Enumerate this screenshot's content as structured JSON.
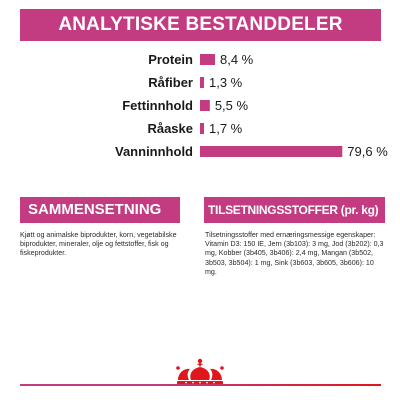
{
  "header": {
    "title": "ANALYTISKE BESTANDDELER"
  },
  "chart_data": {
    "type": "bar",
    "orientation": "horizontal",
    "categories": [
      "Protein",
      "Råfiber",
      "Fettinnhold",
      "Råaske",
      "Vanninnhold"
    ],
    "values": [
      8.4,
      1.3,
      5.5,
      1.7,
      79.6
    ],
    "value_labels": [
      "8,4 %",
      "1,3 %",
      "5,5 %",
      "1,7 %",
      "79,6 %"
    ],
    "unit": "%",
    "xlim": [
      0,
      80
    ],
    "grid": false,
    "legend": "none",
    "bar_color": "#c33b80"
  },
  "composition": {
    "heading": "SAMMENSETNING",
    "text": "Kjøtt og animalske biprodukter, korn, vegetabilske biprodukter, mineraler, olje og fettstoffer, fisk og fiskeprodukter."
  },
  "additives": {
    "heading": "TILSETNINGSSTOFFER (pr. kg)",
    "text": "Tilsetningsstoffer med ernæringsmessige egenskaper: Vitamin D3: 150 IE, Jern (3b103): 3 mg, Jod (3b202): 0,3 mg, Kobber (3b405, 3b406): 2,4 mg, Mangan (3b502, 3b503, 3b504): 1 mg, Sink (3b603, 3b605, 3b606): 10 mg."
  },
  "brand": {
    "logo": "crown-icon"
  },
  "colors": {
    "accent": "#c33b80",
    "brand_red": "#e0161d"
  }
}
